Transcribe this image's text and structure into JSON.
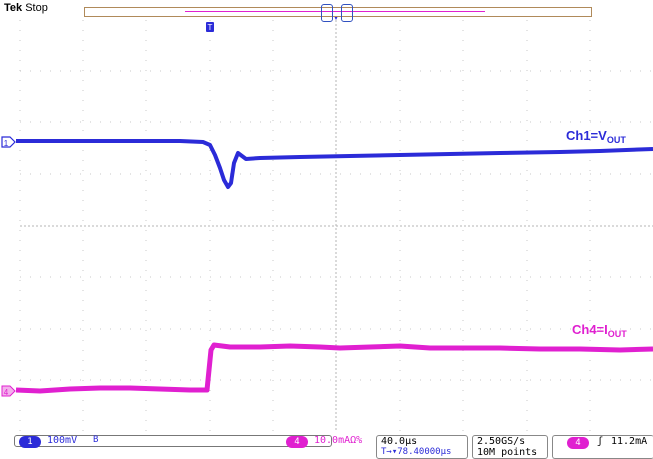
{
  "header": {
    "brand": "Tek",
    "acquisition_state": "Stop"
  },
  "traces": {
    "ch1": {
      "label_main": "Ch1=V",
      "label_sub": "OUT",
      "color": "#2b2bd8",
      "marker": "1"
    },
    "ch4": {
      "label_main": "Ch4=I",
      "label_sub": "OUT",
      "color": "#e020d0",
      "marker": "4"
    }
  },
  "status_bar": {
    "ch1": {
      "number": "1",
      "scale": "100mV",
      "bandwidth": "B"
    },
    "ch4": {
      "number": "4",
      "scale": "10.0mAΩ%"
    },
    "timebase": {
      "scale": "40.0µs",
      "trigger_position": "T→▾78.40000µs"
    },
    "sample": {
      "rate": "2.50GS/s",
      "record_length": "10M points"
    },
    "trigger": {
      "source": "4",
      "slope": "ʃ",
      "level": "11.2mA"
    }
  },
  "markers": {
    "trigger_flag": "T"
  }
}
